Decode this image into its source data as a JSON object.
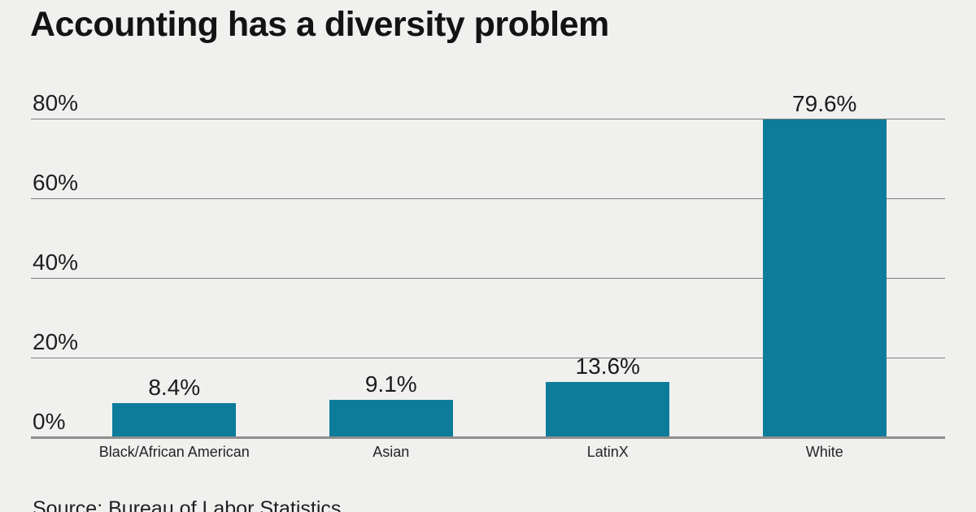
{
  "page": {
    "background_color": "#f0f1ef",
    "accent_color": "#0d7c9b"
  },
  "chart_data": {
    "type": "bar",
    "title": "Accounting has a diversity problem",
    "categories": [
      "Black/African American",
      "Asian",
      "LatinX",
      "White"
    ],
    "values": [
      8.4,
      9.1,
      13.6,
      79.6
    ],
    "value_labels": [
      "8.4%",
      "9.1%",
      "13.6%",
      "79.6%"
    ],
    "yticks": [
      0,
      20,
      40,
      60,
      80
    ],
    "ytick_labels": [
      "0%",
      "20%",
      "40%",
      "60%",
      "80%"
    ],
    "ylim": [
      0,
      80
    ],
    "xlabel": "",
    "ylabel": "",
    "grid": "on",
    "legend": "none",
    "bar_color": "#0d7c9b"
  },
  "source": {
    "text": "Source: Bureau of Labor Statistics"
  }
}
